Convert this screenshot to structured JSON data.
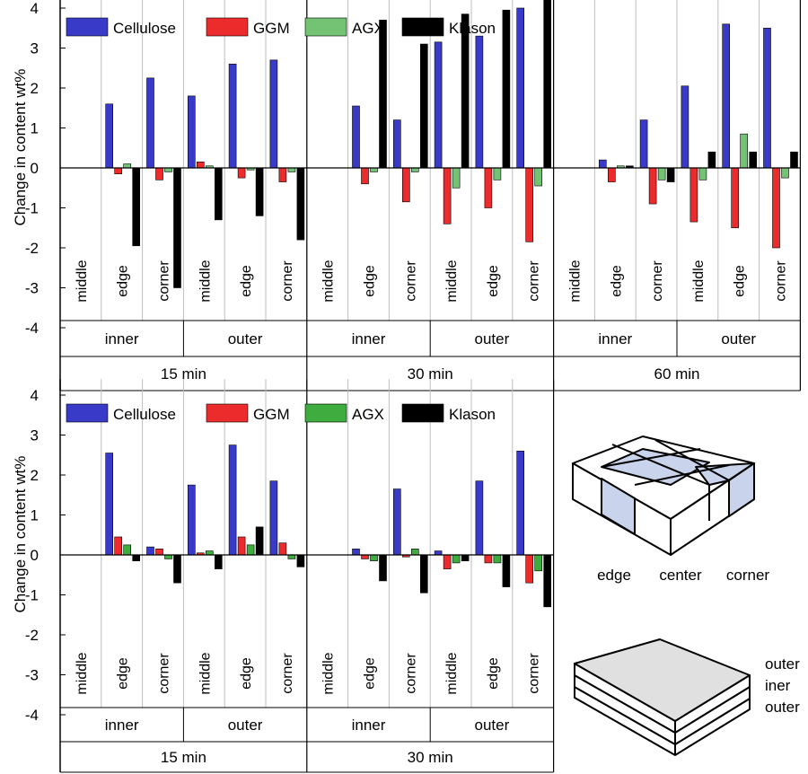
{
  "chart_data": [
    {
      "type": "bar",
      "ylabel": "Change in content wt%",
      "ylim": [
        -4,
        4.4
      ],
      "yticks": [
        4,
        3,
        2,
        1,
        0,
        -1,
        -2,
        -3,
        -4
      ],
      "series_names": [
        "Cellulose",
        "GGM",
        "AGX",
        "Klason"
      ],
      "series_colors": [
        "#3a3ac8",
        "#ec2c2c",
        "#74c374",
        "#000000"
      ],
      "times": [
        "15 min",
        "30 min",
        "60 min"
      ],
      "layers": [
        "inner",
        "outer"
      ],
      "positions": [
        "middle",
        "edge",
        "corner"
      ],
      "values": [
        [
          [
            0,
            0,
            0,
            0
          ],
          [
            1.6,
            -0.15,
            0.1,
            -1.95
          ],
          [
            2.25,
            -0.3,
            -0.1,
            -3.0
          ],
          [
            1.8,
            0.15,
            0.05,
            -1.3
          ],
          [
            2.6,
            -0.25,
            -0.05,
            -1.2
          ],
          [
            2.7,
            -0.35,
            -0.1,
            -1.8
          ]
        ],
        [
          [
            0,
            0,
            0,
            0
          ],
          [
            1.55,
            -0.4,
            -0.1,
            3.7
          ],
          [
            1.2,
            -0.85,
            -0.1,
            3.1
          ],
          [
            3.15,
            -1.4,
            -0.5,
            3.85
          ],
          [
            3.3,
            -1.0,
            -0.3,
            3.95
          ],
          [
            4.0,
            -1.85,
            -0.45,
            4.5
          ]
        ],
        [
          [
            0,
            0,
            0,
            0
          ],
          [
            0.2,
            -0.35,
            0.05,
            0.05
          ],
          [
            1.2,
            -0.9,
            -0.3,
            -0.35
          ],
          [
            2.05,
            -1.35,
            -0.3,
            0.4
          ],
          [
            3.6,
            -1.5,
            0.85,
            0.4
          ],
          [
            3.5,
            -2.0,
            -0.25,
            0.4
          ]
        ]
      ]
    },
    {
      "type": "bar",
      "ylabel": "Change in content wt%",
      "ylim": [
        -4,
        4.4
      ],
      "yticks": [
        4,
        3,
        2,
        1,
        0,
        -1,
        -2,
        -3,
        -4
      ],
      "series_names": [
        "Cellulose",
        "GGM",
        "AGX",
        "Klason"
      ],
      "series_colors": [
        "#3a3ac8",
        "#ec2c2c",
        "#3eac3e",
        "#000000"
      ],
      "times": [
        "15 min",
        "30 min"
      ],
      "layers": [
        "inner",
        "outer"
      ],
      "positions": [
        "middle",
        "edge",
        "corner"
      ],
      "values": [
        [
          [
            0,
            0,
            0,
            0
          ],
          [
            2.55,
            0.45,
            0.25,
            -0.15
          ],
          [
            0.2,
            0.15,
            -0.1,
            -0.7
          ],
          [
            1.75,
            0.05,
            0.1,
            -0.35
          ],
          [
            2.75,
            0.45,
            0.25,
            0.7
          ],
          [
            1.85,
            0.3,
            -0.1,
            -0.3
          ]
        ],
        [
          [
            0,
            0,
            0,
            0
          ],
          [
            0.15,
            -0.1,
            -0.15,
            -0.65
          ],
          [
            1.65,
            -0.05,
            0.15,
            -0.95
          ],
          [
            0.1,
            -0.35,
            -0.2,
            -0.15
          ],
          [
            1.85,
            -0.2,
            -0.2,
            -0.8
          ],
          [
            2.6,
            -0.7,
            -0.4,
            -1.3
          ]
        ]
      ]
    }
  ],
  "sketch": {
    "labels": {
      "edge": "edge",
      "center": "center",
      "corner": "corner"
    },
    "layers": [
      "outer",
      "iner",
      "outer"
    ]
  }
}
